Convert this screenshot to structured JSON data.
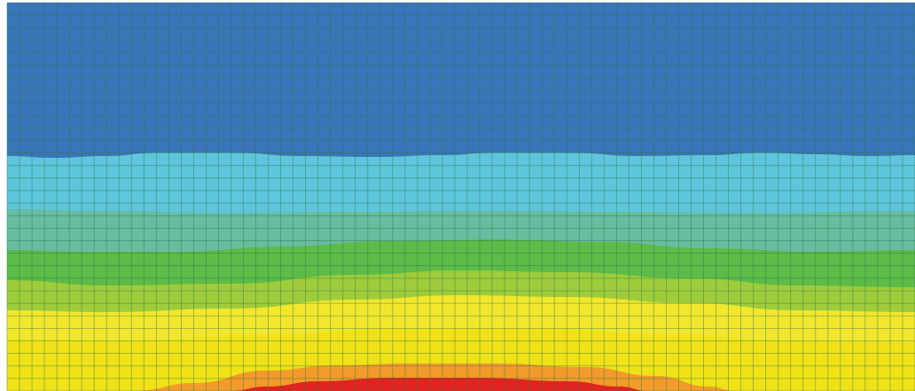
{
  "contour_plot": {
    "bands": [
      {
        "name": "band-1",
        "color": "#3a74b9"
      },
      {
        "name": "band-2",
        "color": "#5ec6dc"
      },
      {
        "name": "band-3",
        "color": "#68bda0"
      },
      {
        "name": "band-4",
        "color": "#5dbb47"
      },
      {
        "name": "band-5",
        "color": "#9fcc3a"
      },
      {
        "name": "band-6",
        "color": "#f2e72d"
      },
      {
        "name": "band-7",
        "color": "#f0e217"
      },
      {
        "name": "band-8",
        "color": "#f29a2a"
      },
      {
        "name": "band-9",
        "color": "#e2231f"
      }
    ],
    "mesh": {
      "line_color": "#2e7a4a",
      "columns": 73,
      "rows": 31
    }
  }
}
